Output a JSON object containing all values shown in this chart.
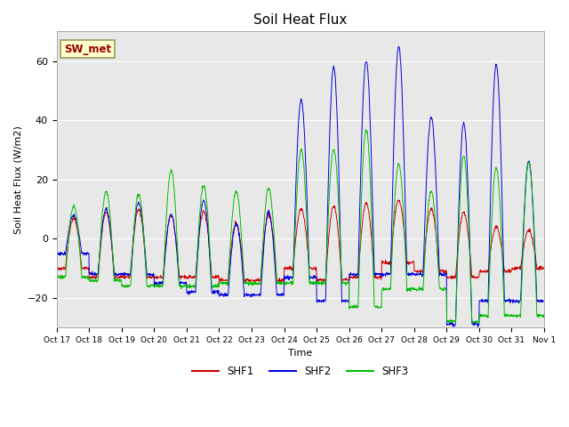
{
  "title": "Soil Heat Flux",
  "ylabel": "Soil Heat Flux (W/m2)",
  "xlabel": "Time",
  "ylim": [
    -30,
    70
  ],
  "bg_color": "#e8e8e8",
  "shf1_color": "#cc0000",
  "shf2_color": "#0000dd",
  "shf3_color": "#00bb00",
  "annotation_text": "SW_met",
  "annotation_bg": "#ffffcc",
  "annotation_text_color": "#990000",
  "annotation_border": "#999966",
  "xtick_labels": [
    "Oct 17",
    "Oct 18",
    "Oct 19",
    "Oct 20",
    "Oct 21",
    "Oct 22",
    "Oct 23",
    "Oct 24",
    "Oct 25",
    "Oct 26",
    "Oct 27",
    "Oct 28",
    "Oct 29",
    "Oct 30",
    "Oct 31",
    "Nov 1"
  ],
  "n_days": 15,
  "n_pts_per_day": 96,
  "amp_shf2": [
    8,
    10,
    12,
    8,
    13,
    5,
    9,
    47,
    58,
    60,
    65,
    41,
    39,
    59,
    26
  ],
  "amp_shf3": [
    11,
    16,
    15,
    23,
    18,
    16,
    17,
    30,
    30,
    37,
    25,
    16,
    28,
    24,
    26
  ],
  "amp_shf1": [
    7,
    9,
    10,
    8,
    9,
    5,
    8,
    10,
    11,
    12,
    13,
    10,
    9,
    4,
    3
  ],
  "night_shf2": [
    5,
    12,
    12,
    15,
    18,
    19,
    19,
    13,
    21,
    12,
    12,
    12,
    29,
    21,
    21
  ],
  "night_shf1": [
    10,
    13,
    13,
    13,
    13,
    14,
    14,
    10,
    14,
    13,
    8,
    11,
    13,
    11,
    10
  ],
  "night_shf3": [
    13,
    14,
    16,
    16,
    16,
    15,
    15,
    15,
    15,
    23,
    17,
    17,
    28,
    26,
    26
  ]
}
